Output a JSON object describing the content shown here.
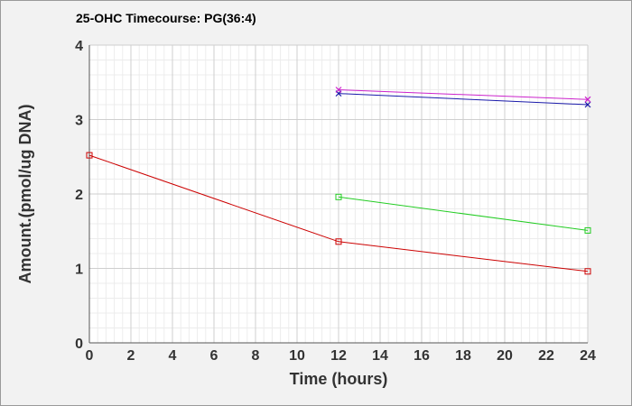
{
  "chart_data": {
    "type": "line",
    "title": "25-OHC Timecourse: PG(36:4)",
    "xlabel": "Time (hours)",
    "ylabel": "Amount.(pmol/ug DNA)",
    "xlim": [
      0,
      24
    ],
    "ylim": [
      0,
      4
    ],
    "xticks": [
      "0",
      "2",
      "4",
      "6",
      "8",
      "10",
      "12",
      "14",
      "16",
      "18",
      "20",
      "22",
      "24"
    ],
    "yticks": [
      "0",
      "1",
      "2",
      "3",
      "4"
    ],
    "grid": true,
    "series": [
      {
        "color": "#cc0000",
        "marker": "square",
        "x": [
          0,
          12,
          24
        ],
        "y": [
          2.52,
          1.36,
          0.96
        ]
      },
      {
        "color": "#22cc22",
        "marker": "square",
        "x": [
          12,
          24
        ],
        "y": [
          1.96,
          1.51
        ]
      },
      {
        "color": "#1a1aaa",
        "marker": "x",
        "x": [
          12,
          24
        ],
        "y": [
          3.35,
          3.2
        ]
      },
      {
        "color": "#cc22cc",
        "marker": "x",
        "x": [
          12,
          24
        ],
        "y": [
          3.4,
          3.27
        ]
      }
    ]
  }
}
